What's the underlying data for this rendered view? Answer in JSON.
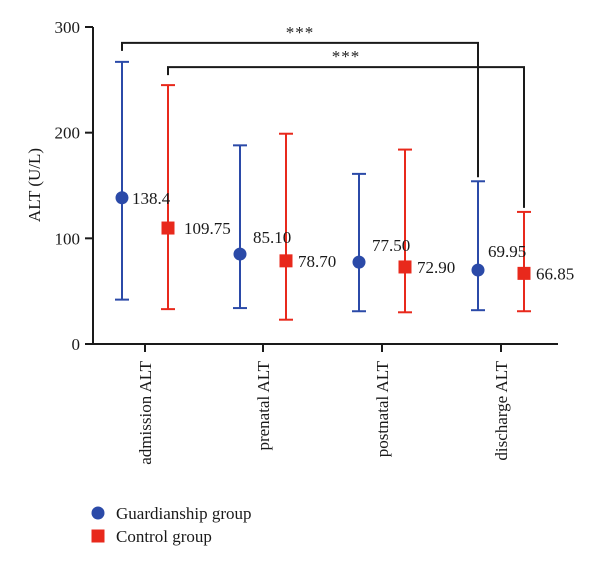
{
  "chart_data": {
    "type": "scatter",
    "title": "",
    "xlabel": "",
    "ylabel": "ALT (U/L)",
    "ylim": [
      0,
      300
    ],
    "yticks": [
      0,
      100,
      200,
      300
    ],
    "grid": false,
    "legend_position": "bottom-left",
    "categories": [
      "admission ALT",
      "prenatal ALT",
      "postnatal ALT",
      "discharge ALT"
    ],
    "series": [
      {
        "name": "Guardianship group",
        "marker": "circle",
        "color": "#2b4aa8",
        "values": [
          138.4,
          85.1,
          77.5,
          69.95
        ],
        "labels": [
          "138.4",
          "85.10",
          "77.50",
          "69.95"
        ],
        "error_low": [
          42,
          34,
          31,
          32
        ],
        "error_high": [
          267,
          188,
          161,
          154
        ]
      },
      {
        "name": "Control group",
        "marker": "square",
        "color": "#e8291c",
        "values": [
          109.75,
          78.7,
          72.9,
          66.85
        ],
        "labels": [
          "109.75",
          "78.70",
          "72.90",
          "66.85"
        ],
        "error_low": [
          33,
          23,
          30,
          31
        ],
        "error_high": [
          245,
          199,
          184,
          125
        ]
      }
    ],
    "significance": [
      {
        "label": "***",
        "from_series": 0,
        "from_category": 0,
        "to_series": 0,
        "to_category": 3,
        "level": 285
      },
      {
        "label": "***",
        "from_series": 1,
        "from_category": 0,
        "to_series": 1,
        "to_category": 3,
        "level": 262
      }
    ]
  }
}
